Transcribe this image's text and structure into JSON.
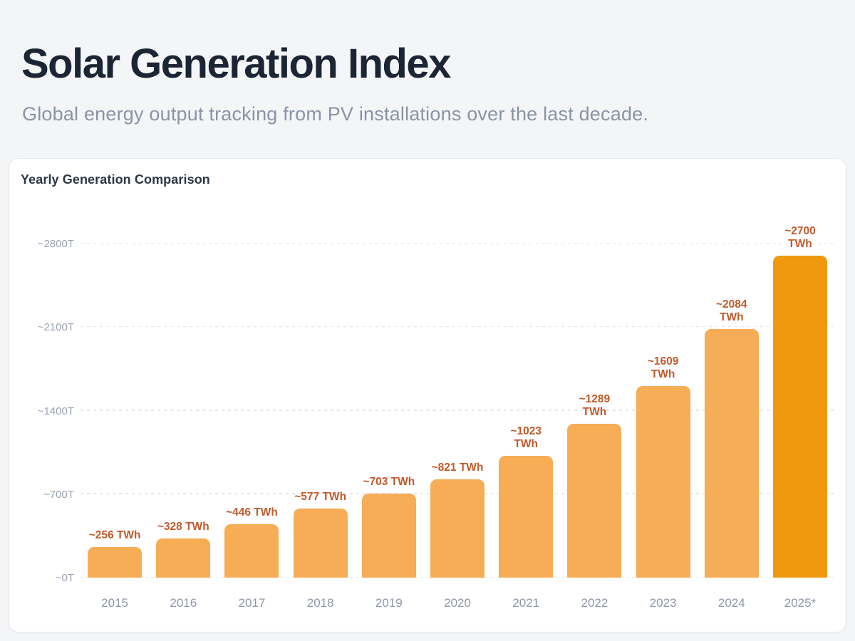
{
  "page": {
    "title": "Solar Generation Index",
    "subtitle": "Global energy output tracking from PV installations over the last decade.",
    "background_color": "#f4f5f7"
  },
  "card": {
    "title": "Yearly Generation Comparison",
    "background_color": "#ffffff",
    "border_color": "#e8eaee"
  },
  "chart_data": {
    "type": "bar",
    "title": "Yearly Generation Comparison",
    "categories": [
      "2015",
      "2016",
      "2017",
      "2018",
      "2019",
      "2020",
      "2021",
      "2022",
      "2023",
      "2024",
      "2025*"
    ],
    "values": [
      256,
      328,
      446,
      577,
      703,
      821,
      1023,
      1289,
      1609,
      2084,
      2700
    ],
    "bar_labels": [
      "~256 TWh",
      "~328 TWh",
      "~446 TWh",
      "~577 TWh",
      "~703 TWh",
      "~821 TWh",
      "~1023\nTWh",
      "~1289\nTWh",
      "~1609\nTWh",
      "~2084\nTWh",
      "~2700\nTWh"
    ],
    "y_ticks": [
      {
        "label": "~2800T",
        "value": 2800
      },
      {
        "label": "~2100T",
        "value": 2100
      },
      {
        "label": "~1400T",
        "value": 1400
      },
      {
        "label": "~700T",
        "value": 700
      },
      {
        "label": "~0T",
        "value": 0
      }
    ],
    "ylim": [
      0,
      2800
    ],
    "xlabel": "",
    "ylabel": "",
    "grid": "horizontal-dashed",
    "legend": "none",
    "bar_color": "#f6ad55",
    "highlight_bar_color": "#f0990f",
    "highlight_index": 10,
    "value_label_color": "#c05a2b",
    "y_tick_color": "#9aa2b1",
    "x_tick_color": "#8d97a8"
  }
}
